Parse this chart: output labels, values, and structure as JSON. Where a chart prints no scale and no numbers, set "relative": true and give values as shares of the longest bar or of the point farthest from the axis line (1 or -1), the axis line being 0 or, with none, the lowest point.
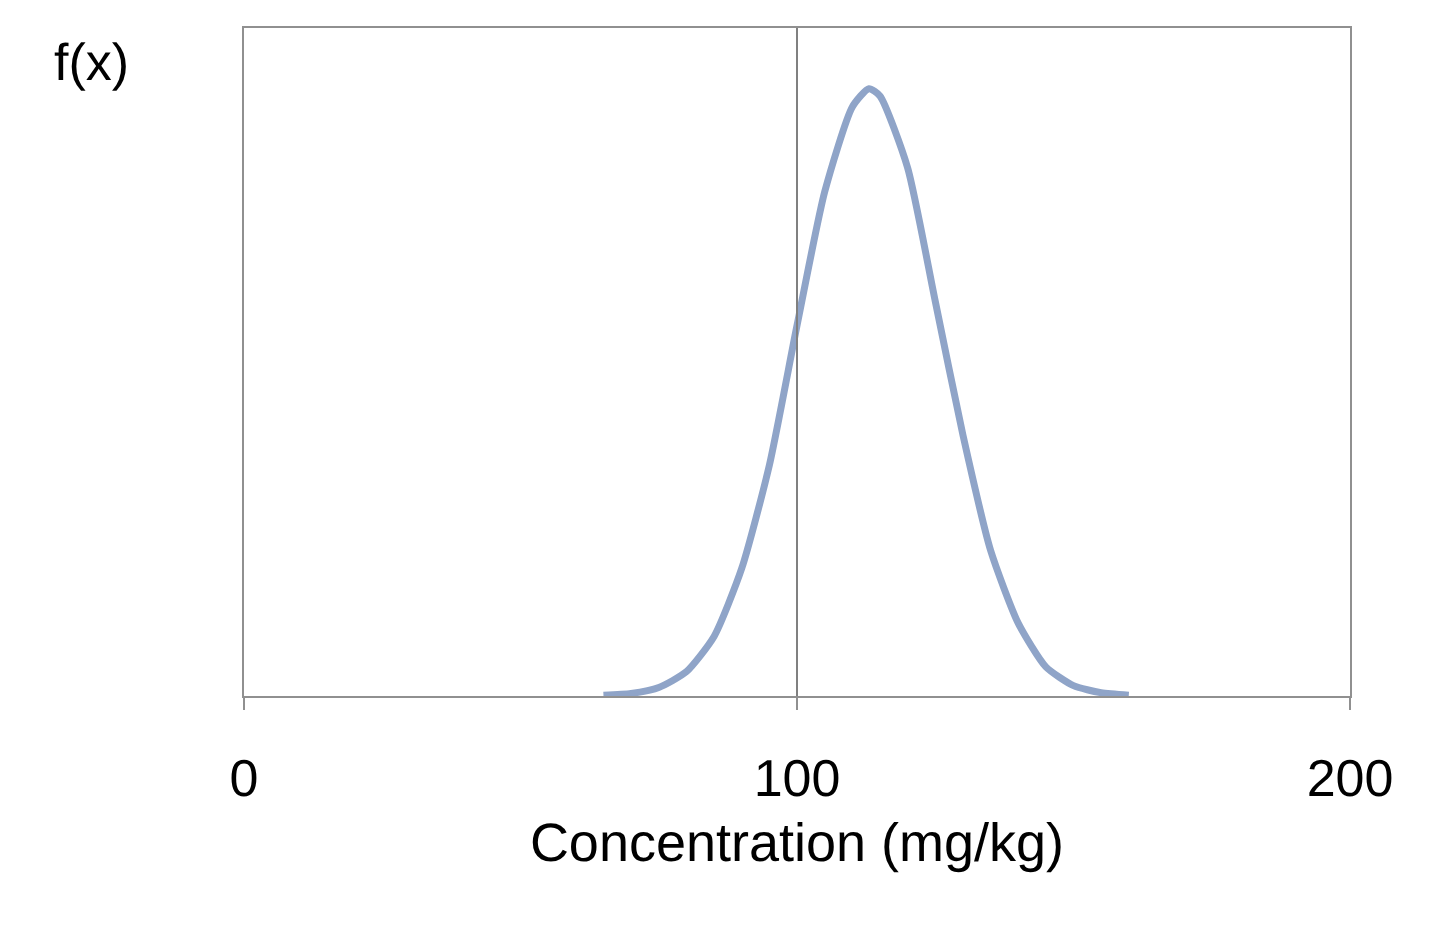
{
  "chart_data": {
    "type": "line",
    "relative": true,
    "xlabel": "Concentration (mg/kg)",
    "ylabel": "f(x)",
    "xlim": [
      0,
      200
    ],
    "xticks": [
      0,
      100,
      200
    ],
    "marker": "none",
    "line_style": "solid",
    "ref_lines": [
      {
        "axis": "x",
        "value": 100,
        "color": "#808080"
      }
    ],
    "series": [
      {
        "color": "#8fa4c8",
        "x": [
          65,
          70,
          75,
          80,
          85,
          90,
          95,
          100,
          105,
          110,
          113,
          115,
          120,
          125,
          130,
          135,
          140,
          145,
          150,
          155,
          160
        ],
        "values": [
          0.0011,
          0.0042,
          0.014,
          0.04,
          0.098,
          0.21,
          0.38,
          0.61,
          0.83,
          0.97,
          1,
          0.988,
          0.87,
          0.65,
          0.43,
          0.24,
          0.12,
          0.048,
          0.017,
          0.0054,
          0.0014
        ]
      }
    ]
  }
}
